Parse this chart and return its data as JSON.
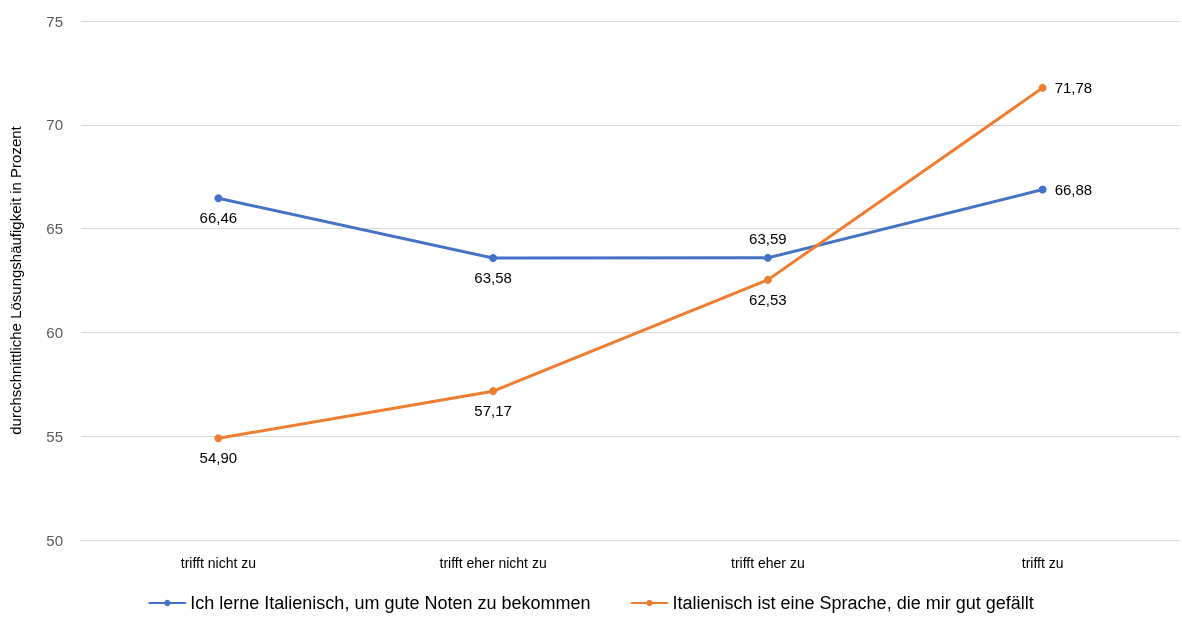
{
  "chart_data": {
    "type": "line",
    "ylabel": "durchschnittliche Lösungshäufigkeit in Prozent",
    "categories": [
      "trifft nicht zu",
      "trifft eher nicht zu",
      "trifft eher zu",
      "trifft zu"
    ],
    "series": [
      {
        "name": "Ich lerne Italienisch, um gute Noten zu bekommen",
        "color": "#4472c4",
        "values": [
          66.46,
          63.58,
          63.59,
          66.88
        ],
        "value_labels": [
          "66,46",
          "63,58",
          "63,59",
          "66,88"
        ]
      },
      {
        "name": "Italienisch ist eine Sprache, die mir gut gefällt",
        "color": "#ed7d31",
        "values": [
          54.9,
          57.17,
          62.53,
          71.78
        ],
        "value_labels": [
          "54,90",
          "57,17",
          "62,53",
          "71,78"
        ]
      }
    ],
    "ylim": [
      50,
      75
    ],
    "yticks": [
      50,
      55,
      60,
      65,
      70,
      75
    ],
    "grid": "y",
    "legend": "bottom",
    "marker": "circle",
    "line_style": "solid"
  }
}
